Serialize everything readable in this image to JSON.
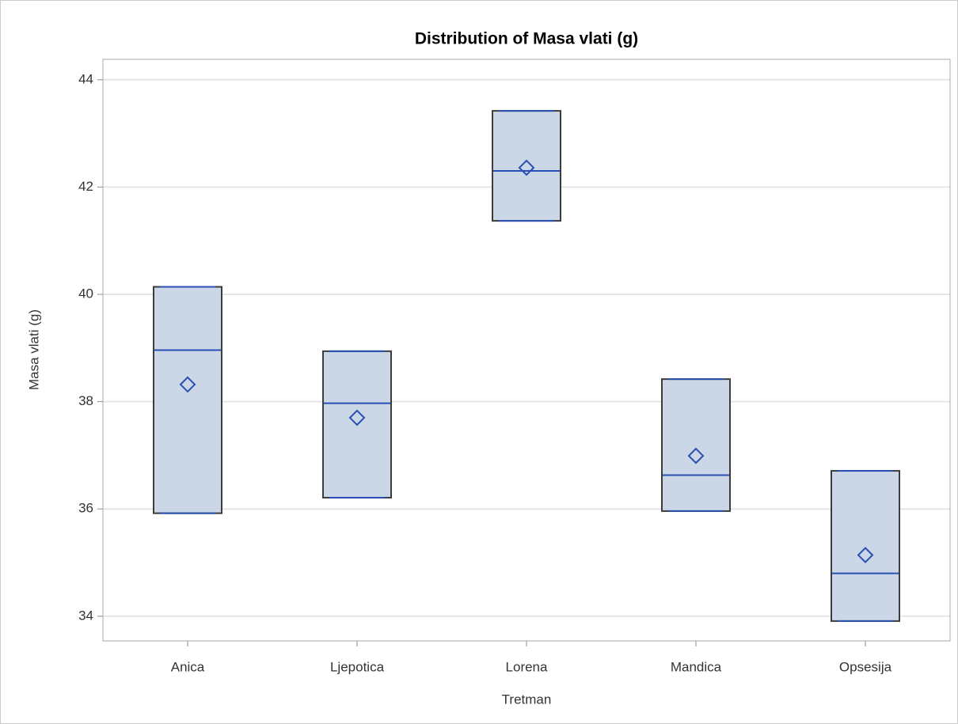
{
  "chart_data": {
    "type": "box",
    "title": "Distribution of Masa vlati (g)",
    "x_label": "Tretman",
    "y_label": "Masa vlati (g)",
    "categories": [
      "Anica",
      "Ljepotica",
      "Lorena",
      "Mandica",
      "Opsesija"
    ],
    "min": [
      35.92,
      36.21,
      41.37,
      35.96,
      33.91
    ],
    "q1": [
      35.92,
      36.21,
      41.37,
      35.96,
      33.91
    ],
    "median": [
      38.96,
      37.97,
      42.3,
      36.63,
      34.8
    ],
    "q3": [
      40.14,
      38.94,
      43.42,
      38.42,
      36.71
    ],
    "max": [
      40.14,
      38.94,
      43.42,
      38.42,
      36.71
    ],
    "mean": [
      38.32,
      37.7,
      42.36,
      36.99,
      35.14
    ],
    "box_color": "#cbd6e7",
    "edge_color": "#3c3c3c",
    "median_color": "#2850b4",
    "mean_color": "#2850b4",
    "ylim": [
      33.54,
      44.38
    ],
    "yticks": [
      34,
      36,
      38,
      40,
      42,
      44
    ],
    "grid": true
  }
}
